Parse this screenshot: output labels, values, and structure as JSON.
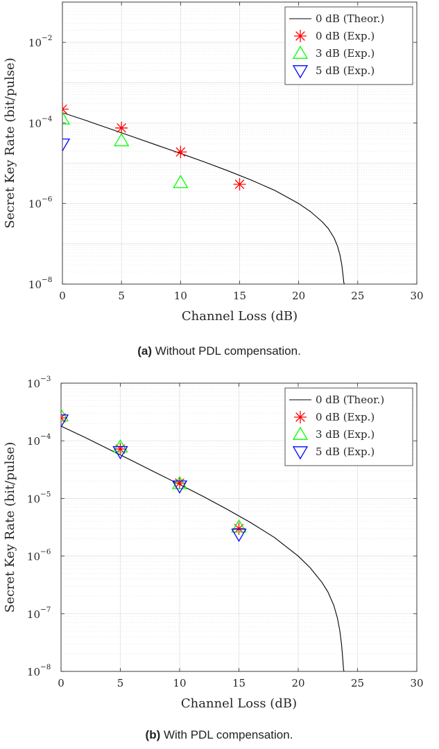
{
  "chart_data": [
    {
      "type": "line",
      "caption": {
        "label": "(a)",
        "text": " Without PDL compensation."
      },
      "xlabel": "Channel Loss (dB)",
      "ylabel": "Secret Key Rate (bit/pulse)",
      "xlim": [
        0,
        30
      ],
      "ylim": [
        1e-08,
        0.1
      ],
      "yscale": "log",
      "xticks": [
        0,
        5,
        10,
        15,
        20,
        25,
        30
      ],
      "yticks": [
        {
          "base": "10",
          "exp": "−8",
          "value": 1e-08
        },
        {
          "base": "10",
          "exp": "−6",
          "value": 1e-06
        },
        {
          "base": "10",
          "exp": "−4",
          "value": 0.0001
        },
        {
          "base": "10",
          "exp": "−2",
          "value": 0.01
        }
      ],
      "grid": true,
      "legend_position": "top-right",
      "series": [
        {
          "name": "0 dB (Theor.)",
          "kind": "line",
          "color": "#000000",
          "x": [
            0,
            2,
            4,
            6,
            8,
            10,
            12,
            14,
            16,
            18,
            20,
            21,
            22,
            22.5,
            23,
            23.3,
            23.5,
            23.65,
            23.75,
            23.82,
            23.86
          ],
          "y": [
            0.00018,
            0.000115,
            7.2e-05,
            4.5e-05,
            2.8e-05,
            1.75e-05,
            1.08e-05,
            6.5e-06,
            3.8e-06,
            2.1e-06,
            1e-06,
            6.3e-07,
            3.5e-07,
            2.4e-07,
            1.4e-07,
            8.5e-08,
            5.2e-08,
            3e-08,
            1.7e-08,
            1.1e-08,
            1e-08
          ]
        },
        {
          "name": "0 dB (Exp.)",
          "kind": "marker",
          "marker": "asterisk",
          "color": "#ff0000",
          "x": [
            0,
            5,
            10,
            15
          ],
          "y": [
            0.00022,
            7.5e-05,
            1.9e-05,
            3e-06
          ]
        },
        {
          "name": "3 dB (Exp.)",
          "kind": "marker",
          "marker": "triangle-up",
          "color": "#00ff00",
          "x": [
            0,
            5,
            10
          ],
          "y": [
            0.000125,
            3.6e-05,
            3.3e-06
          ]
        },
        {
          "name": "5 dB (Exp.)",
          "kind": "marker",
          "marker": "triangle-down",
          "color": "#0000ff",
          "x": [
            0
          ],
          "y": [
            3e-05
          ]
        }
      ]
    },
    {
      "type": "line",
      "caption": {
        "label": "(b)",
        "text": " With PDL compensation."
      },
      "xlabel": "Channel Loss (dB)",
      "ylabel": "Secret Key Rate (bit/pulse)",
      "xlim": [
        0,
        30
      ],
      "ylim": [
        1e-08,
        0.001
      ],
      "yscale": "log",
      "xticks": [
        0,
        5,
        10,
        15,
        20,
        25,
        30
      ],
      "yticks": [
        {
          "base": "10",
          "exp": "−8",
          "value": 1e-08
        },
        {
          "base": "10",
          "exp": "−7",
          "value": 1e-07
        },
        {
          "base": "10",
          "exp": "−6",
          "value": 1e-06
        },
        {
          "base": "10",
          "exp": "−5",
          "value": 1e-05
        },
        {
          "base": "10",
          "exp": "−4",
          "value": 0.0001
        },
        {
          "base": "10",
          "exp": "−3",
          "value": 0.001
        }
      ],
      "grid": true,
      "legend_position": "top-right",
      "series": [
        {
          "name": "0 dB (Theor.)",
          "kind": "line",
          "color": "#000000",
          "x": [
            0,
            2,
            4,
            6,
            8,
            10,
            12,
            14,
            16,
            18,
            20,
            21,
            22,
            22.5,
            23,
            23.3,
            23.5,
            23.65,
            23.75,
            23.82,
            23.86
          ],
          "y": [
            0.00018,
            0.000115,
            7.2e-05,
            4.5e-05,
            2.8e-05,
            1.75e-05,
            1.08e-05,
            6.5e-06,
            3.8e-06,
            2.1e-06,
            1e-06,
            6.3e-07,
            3.5e-07,
            2.4e-07,
            1.4e-07,
            8.5e-08,
            5.2e-08,
            3e-08,
            1.7e-08,
            1.1e-08,
            1e-08
          ]
        },
        {
          "name": "0 dB (Exp.)",
          "kind": "marker",
          "marker": "asterisk",
          "color": "#ff0000",
          "x": [
            0,
            5,
            10,
            15
          ],
          "y": [
            0.00025,
            7.2e-05,
            1.85e-05,
            3e-06
          ]
        },
        {
          "name": "3 dB (Exp.)",
          "kind": "marker",
          "marker": "triangle-up",
          "color": "#00ff00",
          "x": [
            0,
            5,
            10,
            15
          ],
          "y": [
            0.00027,
            7.8e-05,
            1.8e-05,
            3.2e-06
          ]
        },
        {
          "name": "5 dB (Exp.)",
          "kind": "marker",
          "marker": "triangle-down",
          "color": "#0000ff",
          "x": [
            0,
            5,
            10,
            15
          ],
          "y": [
            0.00023,
            6.5e-05,
            1.65e-05,
            2.4e-06
          ]
        }
      ]
    }
  ]
}
